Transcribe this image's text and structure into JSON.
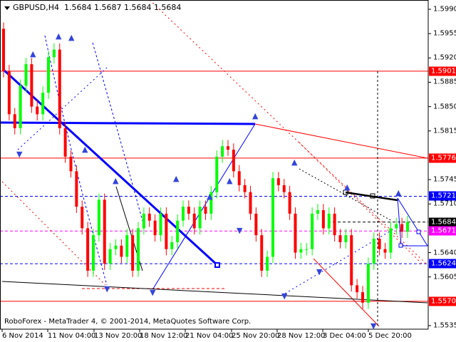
{
  "header": {
    "symbol_timeframe": "GBPUSD,H4",
    "ohlc": "1.5684 1.5687 1.5684 1.5684"
  },
  "footer": {
    "copyright": "RoboForex - MetaTrader 4, © 2001-2014, MetaQuotes Software Corp."
  },
  "colors": {
    "bull": "#00ff00",
    "bear": "#ff0000",
    "level_red": "#ff0000",
    "level_blue": "#0000ff",
    "bid_line": "#000000",
    "magenta": "#ff00ff",
    "trend_blue": "#0000ff"
  },
  "chart_data": {
    "type": "candlestick",
    "symbol": "GBPUSD",
    "timeframe": "H4",
    "ylim": [
      1.5525,
      1.6003
    ],
    "y_ticks": [
      "1.5990",
      "1.5955",
      "1.5920",
      "1.5885",
      "1.5850",
      "1.5815",
      "1.5745",
      "1.5710",
      "1.5640",
      "1.5605",
      "1.5535"
    ],
    "x_ticks": [
      "6 Nov 2014",
      "11 Nov 04:00",
      "13 Nov 20:00",
      "18 Nov 12:00",
      "21 Nov 04:00",
      "25 Nov 20:00",
      "28 Nov 12:00",
      "3 Dec 04:00",
      "5 Dec 20:00"
    ],
    "first_open": 1.5962,
    "closes": [
      1.5901,
      1.5839,
      1.5819,
      1.588,
      1.5911,
      1.585,
      1.5839,
      1.587,
      1.5921,
      1.5932,
      1.5819,
      1.5778,
      1.5757,
      1.5706,
      1.5675,
      1.5614,
      1.5665,
      1.5716,
      1.5624,
      1.5645,
      1.565,
      1.5634,
      1.5665,
      1.5614,
      1.5675,
      1.5696,
      1.5686,
      1.5665,
      1.5696,
      1.5645,
      1.5655,
      1.5686,
      1.5706,
      1.5696,
      1.5675,
      1.5706,
      1.5696,
      1.5727,
      1.5778,
      1.5793,
      1.5788,
      1.5757,
      1.5737,
      1.5727,
      1.5696,
      1.5665,
      1.5614,
      1.5634,
      1.5747,
      1.5737,
      1.5727,
      1.5696,
      1.564,
      1.5645,
      1.5645,
      1.5696,
      1.5701,
      1.5675,
      1.5696,
      1.5665,
      1.5655,
      1.5665,
      1.5593,
      1.5583,
      1.5568,
      1.5624,
      1.566,
      1.5645,
      1.564,
      1.5675,
      1.5681,
      1.567,
      1.5684
    ],
    "levels": [
      {
        "price": "1.5901",
        "color": "#ff0000",
        "style": "solid"
      },
      {
        "price": "1.5776",
        "color": "#ff0000",
        "style": "solid"
      },
      {
        "price": "1.5721",
        "color": "#0000ff",
        "style": "dashed"
      },
      {
        "price": "1.5684",
        "color": "#000000",
        "style": "dashed"
      },
      {
        "price": "1.5671",
        "color": "#ff00ff",
        "style": "dashed"
      },
      {
        "price": "1.5624",
        "color": "#0000ff",
        "style": "dashed"
      },
      {
        "price": "1.5570",
        "color": "#ff0000",
        "style": "solid"
      }
    ]
  }
}
